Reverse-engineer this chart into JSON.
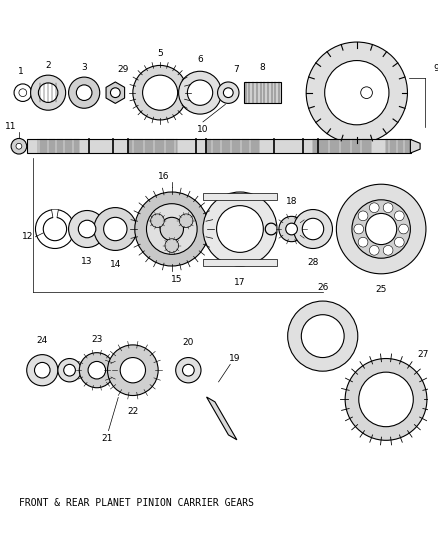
{
  "background_color": "#ffffff",
  "line_color": "#000000",
  "title": "FRONT & REAR PLANET PINION CARRIER GEARS",
  "title_fontsize": 7.0,
  "fig_width": 4.38,
  "fig_height": 5.33,
  "dpi": 100
}
